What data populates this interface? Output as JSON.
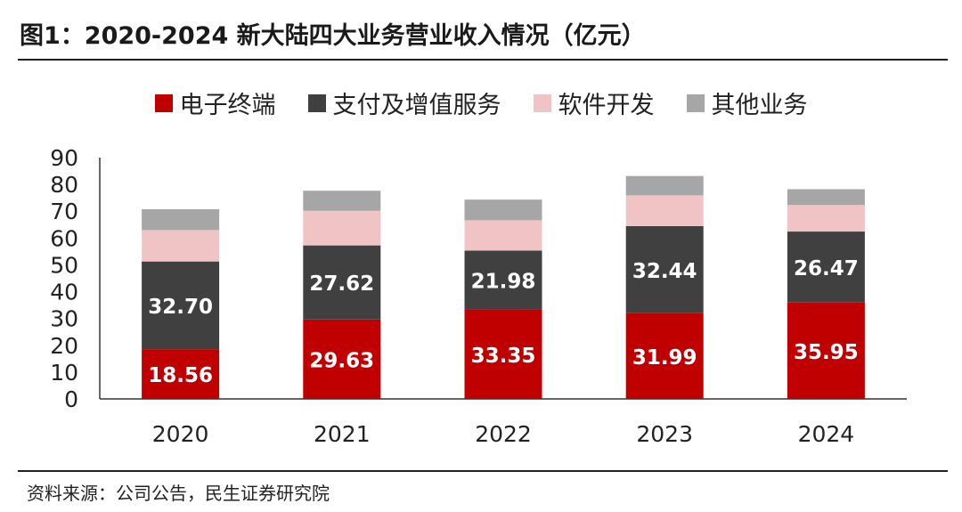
{
  "title": "图1：2020-2024 新大陆四大业务营业收入情况（亿元）",
  "source": "资料来源：公司公告，民生证券研究院",
  "chart_data": {
    "type": "bar",
    "stacked": true,
    "categories": [
      "2020",
      "2021",
      "2022",
      "2023",
      "2024"
    ],
    "series": [
      {
        "name": "电子终端",
        "color": "#c00000",
        "values": [
          18.56,
          29.63,
          33.35,
          31.99,
          35.95
        ],
        "labeled": true
      },
      {
        "name": "支付及增值服务",
        "color": "#404040",
        "values": [
          32.7,
          27.62,
          21.98,
          32.44,
          26.47
        ],
        "labeled": true
      },
      {
        "name": "软件开发",
        "color": "#f0c4c4",
        "values": [
          11.7,
          12.9,
          11.3,
          11.5,
          9.9
        ],
        "labeled": false
      },
      {
        "name": "其他业务",
        "color": "#a6a6a6",
        "values": [
          7.8,
          7.5,
          7.7,
          7.2,
          5.9
        ],
        "labeled": false
      }
    ],
    "data_labels": [
      [
        "18.56",
        "29.63",
        "33.35",
        "31.99",
        "35.95"
      ],
      [
        "32.70",
        "27.62",
        "21.98",
        "32.44",
        "26.47"
      ]
    ],
    "yticks": [
      "0",
      "10",
      "20",
      "30",
      "40",
      "50",
      "60",
      "70",
      "80",
      "90"
    ],
    "ylim": [
      0,
      90
    ],
    "xlabel": "",
    "ylabel": "",
    "legend_position": "top-center",
    "grid": false
  }
}
